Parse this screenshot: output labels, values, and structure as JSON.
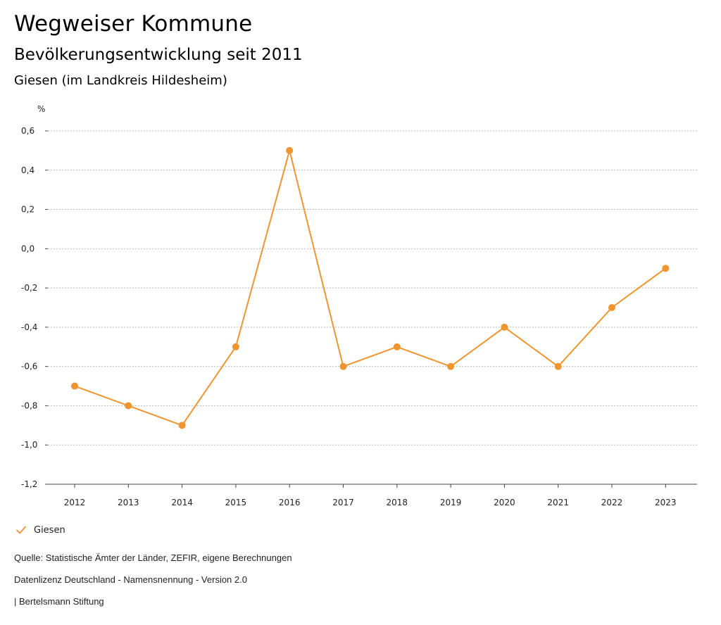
{
  "header": {
    "title": "Wegweiser Kommune",
    "subtitle": "Bevölkerungsentwicklung seit 2011",
    "region": "Giesen (im Landkreis Hildesheim)"
  },
  "legend": {
    "label": "Giesen"
  },
  "footer": {
    "source": "Quelle: Statistische Ämter der Länder, ZEFIR, eigene Berechnungen",
    "license": "Datenlizenz Deutschland - Namensnennung - Version 2.0",
    "publisher": "| Bertelsmann Stiftung"
  },
  "colors": {
    "series": "#f0952e",
    "grid": "#bbbbbb",
    "axis": "#444444"
  },
  "chart_data": {
    "type": "line",
    "ylabel": "%",
    "ylim": [
      -1.2,
      0.6
    ],
    "yticks": [
      0.6,
      0.4,
      0.2,
      0.0,
      -0.2,
      -0.4,
      -0.6,
      -0.8,
      -1.0,
      -1.2
    ],
    "ytick_labels": [
      "0,6",
      "0,4",
      "0,2",
      "0,0",
      "-0,2",
      "-0,4",
      "-0,6",
      "-0,8",
      "-1,0",
      "-1,2"
    ],
    "categories": [
      "2012",
      "2013",
      "2014",
      "2015",
      "2016",
      "2017",
      "2018",
      "2019",
      "2020",
      "2021",
      "2022",
      "2023"
    ],
    "series": [
      {
        "name": "Giesen",
        "values": [
          -0.7,
          -0.8,
          -0.9,
          -0.5,
          0.5,
          -0.6,
          -0.5,
          -0.6,
          -0.4,
          -0.6,
          -0.3,
          -0.1
        ]
      }
    ],
    "grid": true,
    "legend_position": "bottom-left"
  }
}
